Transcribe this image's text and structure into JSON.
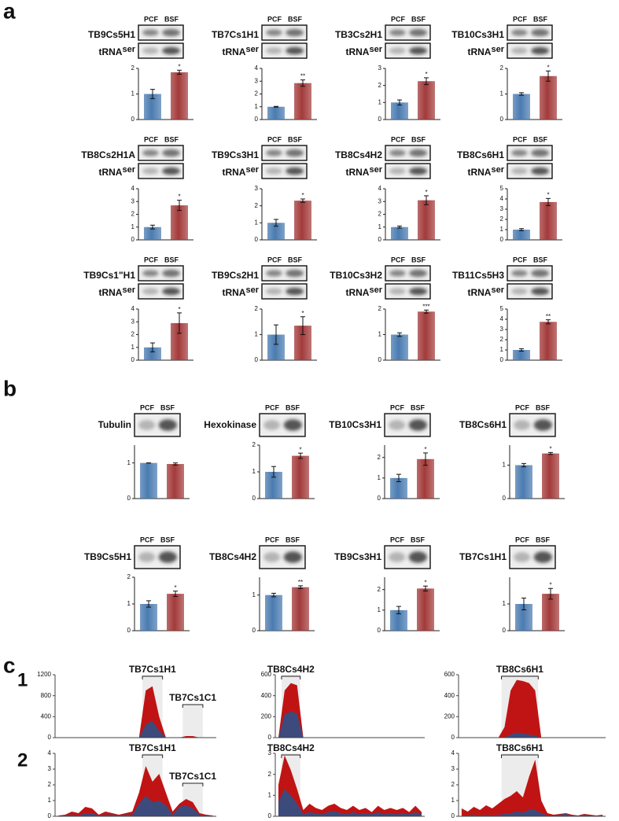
{
  "panel_a": "a",
  "panel_b": "b",
  "panel_c": "c",
  "panel_c1": "1",
  "panel_c2": "2",
  "blot_label": "tRNA",
  "blot_label_sup": "ser",
  "chart_data": [
    {
      "type": "bar",
      "title": "TB9Cs5H1",
      "categories": [
        "PCF",
        "BSF"
      ],
      "values": [
        1,
        1.85
      ],
      "errors": [
        0.18,
        0.08
      ],
      "colors": [
        "#4a7bb0",
        "#a33a3a"
      ],
      "ylim": [
        0,
        2
      ],
      "yticks": [
        0,
        1,
        2
      ],
      "annotation": "*"
    },
    {
      "type": "bar",
      "title": "TB7Cs1H1",
      "categories": [
        "PCF",
        "BSF"
      ],
      "values": [
        1,
        2.85
      ],
      "errors": [
        0.03,
        0.25
      ],
      "colors": [
        "#4a7bb0",
        "#a33a3a"
      ],
      "ylim": [
        0,
        4
      ],
      "yticks": [
        0,
        1,
        2,
        3,
        4
      ],
      "annotation": "**"
    },
    {
      "type": "bar",
      "title": "TB3Cs2H1",
      "categories": [
        "PCF",
        "BSF"
      ],
      "values": [
        1,
        2.25
      ],
      "errors": [
        0.15,
        0.2
      ],
      "colors": [
        "#4a7bb0",
        "#a33a3a"
      ],
      "ylim": [
        0,
        3
      ],
      "yticks": [
        0,
        1,
        2,
        3
      ],
      "annotation": "*"
    },
    {
      "type": "bar",
      "title": "TB10Cs3H1",
      "categories": [
        "PCF",
        "BSF"
      ],
      "values": [
        1,
        1.7
      ],
      "errors": [
        0.05,
        0.2
      ],
      "colors": [
        "#4a7bb0",
        "#a33a3a"
      ],
      "ylim": [
        0,
        2
      ],
      "yticks": [
        0,
        1,
        2
      ],
      "annotation": "*"
    },
    {
      "type": "bar",
      "title": "TB8Cs2H1A",
      "categories": [
        "PCF",
        "BSF"
      ],
      "values": [
        1,
        2.7
      ],
      "errors": [
        0.15,
        0.4
      ],
      "colors": [
        "#4a7bb0",
        "#a33a3a"
      ],
      "ylim": [
        0,
        4
      ],
      "yticks": [
        0,
        1,
        2,
        3,
        4
      ],
      "annotation": "*"
    },
    {
      "type": "bar",
      "title": "TB9Cs3H1",
      "categories": [
        "PCF",
        "BSF"
      ],
      "values": [
        1,
        2.3
      ],
      "errors": [
        0.2,
        0.1
      ],
      "colors": [
        "#4a7bb0",
        "#a33a3a"
      ],
      "ylim": [
        0,
        3
      ],
      "yticks": [
        0,
        1,
        2,
        3
      ],
      "annotation": "*"
    },
    {
      "type": "bar",
      "title": "TB8Cs4H2",
      "categories": [
        "PCF",
        "BSF"
      ],
      "values": [
        1,
        3.1
      ],
      "errors": [
        0.08,
        0.35
      ],
      "colors": [
        "#4a7bb0",
        "#a33a3a"
      ],
      "ylim": [
        0,
        4
      ],
      "yticks": [
        0,
        1,
        2,
        3,
        4
      ],
      "annotation": "*"
    },
    {
      "type": "bar",
      "title": "TB8Cs6H1",
      "categories": [
        "PCF",
        "BSF"
      ],
      "values": [
        1,
        3.7
      ],
      "errors": [
        0.1,
        0.35
      ],
      "colors": [
        "#4a7bb0",
        "#a33a3a"
      ],
      "ylim": [
        0,
        5
      ],
      "yticks": [
        0,
        1,
        2,
        3,
        4,
        5
      ],
      "annotation": "*"
    },
    {
      "type": "bar",
      "title": "TB9Cs1\"H1",
      "categories": [
        "PCF",
        "BSF"
      ],
      "values": [
        1,
        2.9
      ],
      "errors": [
        0.35,
        0.8
      ],
      "colors": [
        "#4a7bb0",
        "#a33a3a"
      ],
      "ylim": [
        0,
        4
      ],
      "yticks": [
        0,
        1,
        2,
        3,
        4
      ],
      "annotation": "*"
    },
    {
      "type": "bar",
      "title": "TB9Cs2H1",
      "categories": [
        "PCF",
        "BSF"
      ],
      "values": [
        1,
        1.35
      ],
      "errors": [
        0.38,
        0.35
      ],
      "colors": [
        "#4a7bb0",
        "#a33a3a"
      ],
      "ylim": [
        0,
        2
      ],
      "yticks": [
        0,
        1,
        2
      ],
      "annotation": "*"
    },
    {
      "type": "bar",
      "title": "TB10Cs3H2",
      "categories": [
        "PCF",
        "BSF"
      ],
      "values": [
        1,
        1.9
      ],
      "errors": [
        0.07,
        0.06
      ],
      "colors": [
        "#4a7bb0",
        "#a33a3a"
      ],
      "ylim": [
        0,
        2
      ],
      "yticks": [
        0,
        1,
        2
      ],
      "annotation": "***"
    },
    {
      "type": "bar",
      "title": "TB11Cs5H3",
      "categories": [
        "PCF",
        "BSF"
      ],
      "values": [
        1,
        3.75
      ],
      "errors": [
        0.12,
        0.2
      ],
      "colors": [
        "#4a7bb0",
        "#a33a3a"
      ],
      "ylim": [
        0,
        5
      ],
      "yticks": [
        0,
        1,
        2,
        3,
        4,
        5
      ],
      "annotation": "**"
    },
    {
      "type": "bar",
      "title": "Tubulin",
      "categories": [
        "PCF",
        "BSF"
      ],
      "values": [
        1,
        0.97
      ],
      "errors": [
        0,
        0.03
      ],
      "colors": [
        "#4a7bb0",
        "#a33a3a"
      ],
      "ylim": [
        0,
        1.5
      ],
      "yticks": [
        0,
        1
      ]
    },
    {
      "type": "bar",
      "title": "Hexokinase",
      "categories": [
        "PCF",
        "BSF"
      ],
      "values": [
        1,
        1.6
      ],
      "errors": [
        0.2,
        0.1
      ],
      "colors": [
        "#4a7bb0",
        "#a33a3a"
      ],
      "ylim": [
        0,
        2
      ],
      "yticks": [
        0,
        1,
        2
      ],
      "annotation": "*"
    },
    {
      "type": "bar",
      "title": "TB10Cs3H1",
      "categories": [
        "PCF",
        "BSF"
      ],
      "values": [
        1,
        1.92
      ],
      "errors": [
        0.18,
        0.3
      ],
      "colors": [
        "#4a7bb0",
        "#a33a3a"
      ],
      "ylim": [
        0,
        2.6
      ],
      "yticks": [
        0,
        1,
        2
      ],
      "annotation": "*"
    },
    {
      "type": "bar",
      "title": "TB8Cs6H1",
      "categories": [
        "PCF",
        "BSF"
      ],
      "values": [
        1,
        1.35
      ],
      "errors": [
        0.05,
        0.03
      ],
      "colors": [
        "#4a7bb0",
        "#a33a3a"
      ],
      "ylim": [
        0,
        1.6
      ],
      "yticks": [
        0,
        1
      ],
      "annotation": "*"
    },
    {
      "type": "bar",
      "title": "TB9Cs5H1",
      "categories": [
        "PCF",
        "BSF"
      ],
      "values": [
        1,
        1.38
      ],
      "errors": [
        0.12,
        0.1
      ],
      "colors": [
        "#4a7bb0",
        "#a33a3a"
      ],
      "ylim": [
        0,
        2
      ],
      "yticks": [
        0,
        1,
        2
      ],
      "annotation": "*"
    },
    {
      "type": "bar",
      "title": "TB8Cs4H2",
      "categories": [
        "PCF",
        "BSF"
      ],
      "values": [
        1,
        1.22
      ],
      "errors": [
        0.05,
        0.04
      ],
      "colors": [
        "#4a7bb0",
        "#a33a3a"
      ],
      "ylim": [
        0,
        1.5
      ],
      "yticks": [
        0,
        1
      ],
      "annotation": "**"
    },
    {
      "type": "bar",
      "title": "TB9Cs3H1",
      "categories": [
        "PCF",
        "BSF"
      ],
      "values": [
        1,
        2.05
      ],
      "errors": [
        0.18,
        0.12
      ],
      "colors": [
        "#4a7bb0",
        "#a33a3a"
      ],
      "ylim": [
        0,
        2.6
      ],
      "yticks": [
        0,
        1,
        2
      ],
      "annotation": "*"
    },
    {
      "type": "bar",
      "title": "TB7Cs1H1",
      "categories": [
        "PCF",
        "BSF"
      ],
      "values": [
        1,
        1.38
      ],
      "errors": [
        0.22,
        0.2
      ],
      "colors": [
        "#4a7bb0",
        "#a33a3a"
      ],
      "ylim": [
        0,
        2
      ],
      "yticks": [
        0,
        1
      ],
      "annotation": "*"
    },
    {
      "type": "area",
      "ylim": [
        0,
        1200
      ],
      "yticks": [
        0,
        400,
        800,
        1200
      ],
      "annotations": [
        "TB7Cs1H1",
        "TB7Cs1C1"
      ],
      "series": [
        {
          "color": "#c01414",
          "values": [
            0,
            0,
            0,
            0,
            0,
            0,
            0,
            0,
            0,
            0,
            0,
            0,
            0,
            900,
            980,
            400,
            0,
            0,
            0,
            30,
            30,
            0,
            0,
            0
          ]
        },
        {
          "color": "#3d4a7c",
          "values": [
            0,
            0,
            0,
            0,
            0,
            0,
            0,
            0,
            0,
            0,
            0,
            0,
            0,
            250,
            320,
            130,
            0,
            0,
            0,
            10,
            10,
            0,
            0,
            0
          ]
        }
      ]
    },
    {
      "type": "area",
      "ylim": [
        0,
        600
      ],
      "yticks": [
        0,
        200,
        400,
        600
      ],
      "annotations": [
        "TB8Cs4H2"
      ],
      "series": [
        {
          "color": "#c01414",
          "values": [
            0,
            450,
            520,
            500,
            0,
            0,
            0,
            0,
            0,
            0,
            0,
            0,
            0,
            0,
            0,
            0,
            0,
            0,
            0,
            0,
            0,
            0,
            0,
            0
          ]
        },
        {
          "color": "#3d4a7c",
          "values": [
            0,
            220,
            250,
            230,
            0,
            0,
            0,
            0,
            0,
            0,
            0,
            0,
            0,
            0,
            0,
            0,
            0,
            0,
            0,
            0,
            0,
            0,
            0,
            0
          ]
        }
      ]
    },
    {
      "type": "area",
      "ylim": [
        0,
        600
      ],
      "yticks": [
        0,
        200,
        400,
        600
      ],
      "annotations": [
        "TB8Cs6H1"
      ],
      "series": [
        {
          "color": "#c01414",
          "values": [
            0,
            0,
            0,
            0,
            0,
            0,
            0,
            100,
            450,
            550,
            540,
            520,
            450,
            0,
            0,
            0,
            0,
            0,
            0,
            0,
            0,
            0,
            0,
            0
          ]
        },
        {
          "color": "#3d4a7c",
          "values": [
            0,
            0,
            0,
            0,
            0,
            0,
            0,
            5,
            30,
            50,
            40,
            30,
            20,
            0,
            0,
            0,
            0,
            0,
            0,
            0,
            0,
            0,
            0,
            0
          ]
        }
      ]
    },
    {
      "type": "area",
      "ylim": [
        0,
        4
      ],
      "yticks": [
        0,
        1,
        2,
        3,
        4
      ],
      "annotations": [
        "TB7Cs1H1",
        "TB7Cs1C1"
      ],
      "series": [
        {
          "color": "#c01414",
          "values": [
            0.05,
            0.1,
            0.3,
            0.2,
            0.6,
            0.5,
            0.1,
            0.3,
            0.2,
            0.1,
            0.2,
            0.3,
            1.5,
            3.2,
            2.2,
            2.7,
            1.5,
            0.3,
            0.8,
            1.1,
            0.9,
            0.2,
            0.1,
            0.05
          ]
        },
        {
          "color": "#3d4a7c",
          "values": [
            0.02,
            0.05,
            0.1,
            0.05,
            0.2,
            0.2,
            0.05,
            0.1,
            0.1,
            0.05,
            0.1,
            0.1,
            0.8,
            1.3,
            0.9,
            1.0,
            0.7,
            0.1,
            0.6,
            0.7,
            0.5,
            0.1,
            0.05,
            0.02
          ]
        }
      ]
    },
    {
      "type": "area",
      "ylim": [
        0,
        3
      ],
      "yticks": [
        0,
        1,
        2,
        3
      ],
      "annotations": [
        "TB8Cs4H2"
      ],
      "series": [
        {
          "color": "#c01414",
          "values": [
            1.5,
            2.9,
            2.2,
            1.3,
            0.3,
            0.6,
            0.4,
            0.3,
            0.5,
            0.6,
            0.4,
            0.3,
            0.5,
            0.3,
            0.4,
            0.2,
            0.5,
            0.3,
            0.4,
            0.3,
            0.4,
            0.2,
            0.5,
            0.2
          ]
        },
        {
          "color": "#3d4a7c",
          "values": [
            0.7,
            1.3,
            1.0,
            0.6,
            0.1,
            0.2,
            0.15,
            0.1,
            0.2,
            0.25,
            0.15,
            0.1,
            0.2,
            0.1,
            0.15,
            0.1,
            0.2,
            0.1,
            0.15,
            0.1,
            0.15,
            0.1,
            0.2,
            0.1
          ]
        }
      ]
    },
    {
      "type": "area",
      "ylim": [
        0,
        4
      ],
      "yticks": [
        0,
        1,
        2,
        3,
        4
      ],
      "annotations": [
        "TB8Cs6H1"
      ],
      "series": [
        {
          "color": "#c01414",
          "values": [
            0.5,
            0.3,
            0.6,
            0.4,
            0.7,
            0.5,
            0.8,
            1.1,
            1.3,
            1.6,
            1.2,
            2.5,
            3.6,
            1.0,
            0.2,
            0.1,
            0.15,
            0.2,
            0.1,
            0.05,
            0.15,
            0.1,
            0.05,
            0.1
          ]
        },
        {
          "color": "#3d4a7c",
          "values": [
            0.05,
            0.05,
            0.1,
            0.05,
            0.1,
            0.05,
            0.1,
            0.15,
            0.2,
            0.3,
            0.25,
            0.4,
            0.4,
            0.2,
            0.05,
            0.02,
            0.1,
            0.15,
            0.05,
            0.02,
            0.1,
            0.05,
            0.02,
            0.05
          ]
        }
      ]
    }
  ]
}
